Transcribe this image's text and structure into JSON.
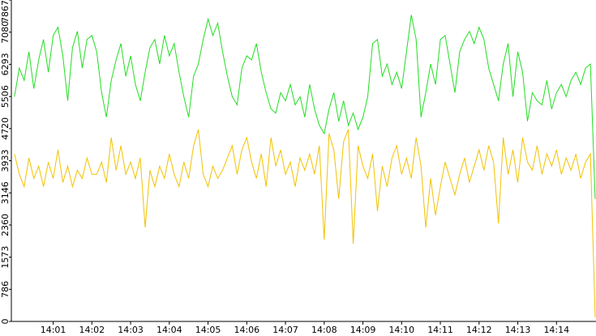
{
  "chart_data": {
    "type": "line",
    "x": [
      0,
      0.125,
      0.25,
      0.375,
      0.5,
      0.625,
      0.75,
      0.875,
      1,
      1.125,
      1.25,
      1.375,
      1.5,
      1.625,
      1.75,
      1.875,
      2,
      2.125,
      2.25,
      2.375,
      2.5,
      2.625,
      2.75,
      2.875,
      3,
      3.125,
      3.25,
      3.375,
      3.5,
      3.625,
      3.75,
      3.875,
      4,
      4.125,
      4.25,
      4.375,
      4.5,
      4.625,
      4.75,
      4.875,
      5,
      5.125,
      5.25,
      5.375,
      5.5,
      5.625,
      5.75,
      5.875,
      6,
      6.125,
      6.25,
      6.375,
      6.5,
      6.625,
      6.75,
      6.875,
      7,
      7.125,
      7.25,
      7.375,
      7.5,
      7.625,
      7.75,
      7.875,
      8,
      8.125,
      8.25,
      8.375,
      8.5,
      8.625,
      8.75,
      8.875,
      9,
      9.125,
      9.25,
      9.375,
      9.5,
      9.625,
      9.75,
      9.875,
      10,
      10.125,
      10.25,
      10.375,
      10.5,
      10.625,
      10.75,
      10.875,
      11,
      11.125,
      11.25,
      11.375,
      11.5,
      11.625,
      11.75,
      11.875,
      12,
      12.125,
      12.25,
      12.375,
      12.5,
      12.625,
      12.75,
      12.875,
      13,
      13.125,
      13.25,
      13.375,
      13.5,
      13.625,
      13.75,
      13.875,
      14,
      14.125,
      14.25,
      14.375,
      14.5,
      14.625,
      14.75,
      14.875,
      15
    ],
    "series": [
      {
        "color": "#22dd22",
        "values": [
          5500,
          6200,
          5900,
          6600,
          5700,
          6400,
          6900,
          6100,
          7000,
          7200,
          6500,
          5400,
          6700,
          7100,
          6200,
          6900,
          7000,
          6600,
          5600,
          5000,
          5900,
          6400,
          6800,
          6000,
          6500,
          5800,
          5400,
          6100,
          6700,
          6900,
          6300,
          7000,
          6500,
          6800,
          6100,
          5500,
          5000,
          6000,
          6300,
          6900,
          7400,
          7000,
          7300,
          6600,
          6000,
          5500,
          5300,
          6200,
          6500,
          6400,
          6800,
          6100,
          5600,
          5200,
          5100,
          5600,
          5400,
          5800,
          5300,
          5500,
          5000,
          5800,
          5200,
          4800,
          4600,
          5200,
          5600,
          4900,
          5400,
          4800,
          5100,
          4700,
          5000,
          5500,
          6800,
          6900,
          6000,
          6300,
          5800,
          6100,
          5700,
          6600,
          7500,
          6900,
          5000,
          5600,
          6300,
          5800,
          6900,
          7000,
          6300,
          5600,
          6600,
          6900,
          7100,
          6800,
          7200,
          6900,
          6200,
          5800,
          5400,
          6300,
          6800,
          5500,
          6600,
          6100,
          4900,
          5600,
          5400,
          5300,
          5900,
          5200,
          5600,
          5800,
          5500,
          5900,
          6100,
          5800,
          6200,
          6300,
          3000
        ]
      },
      {
        "color": "#f2c200",
        "values": [
          4100,
          3600,
          3300,
          4000,
          3500,
          3800,
          3300,
          3900,
          3500,
          4200,
          3400,
          3800,
          3300,
          3700,
          3500,
          4000,
          3600,
          3600,
          3900,
          3400,
          4500,
          3700,
          4300,
          3600,
          3900,
          3500,
          4000,
          2300,
          3700,
          3300,
          3800,
          3500,
          4100,
          3600,
          3300,
          3900,
          3500,
          4300,
          4700,
          3600,
          3300,
          3800,
          3500,
          3700,
          4000,
          4300,
          3600,
          4200,
          4500,
          3900,
          3500,
          4100,
          3300,
          4500,
          3800,
          4200,
          3600,
          3900,
          3300,
          4000,
          3700,
          4100,
          3600,
          4300,
          2000,
          4600,
          4200,
          3000,
          4400,
          4700,
          1900,
          4300,
          3800,
          3500,
          4100,
          2700,
          3800,
          3300,
          4000,
          4300,
          3600,
          4000,
          3500,
          4500,
          3800,
          2300,
          3500,
          2600,
          3300,
          3900,
          3500,
          3100,
          3600,
          4000,
          3400,
          3800,
          4200,
          3700,
          4300,
          3900,
          2400,
          4500,
          3600,
          4200,
          3400,
          4500,
          3900,
          3700,
          4300,
          3600,
          4100,
          3800,
          4200,
          3600,
          4000,
          3700,
          4100,
          3500,
          3900,
          4100,
          100
        ]
      }
    ],
    "xlim": [
      -0.08,
      15.02
    ],
    "xticks": [
      {
        "value": 1,
        "label": "14:01"
      },
      {
        "value": 2,
        "label": "14:02"
      },
      {
        "value": 3,
        "label": "14:03"
      },
      {
        "value": 4,
        "label": "14:04"
      },
      {
        "value": 5,
        "label": "14:05"
      },
      {
        "value": 6,
        "label": "14:06"
      },
      {
        "value": 7,
        "label": "14:07"
      },
      {
        "value": 8,
        "label": "14:08"
      },
      {
        "value": 9,
        "label": "14:09"
      },
      {
        "value": 10,
        "label": "14:10"
      },
      {
        "value": 11,
        "label": "14:11"
      },
      {
        "value": 12,
        "label": "14:12"
      },
      {
        "value": 13,
        "label": "14:13"
      },
      {
        "value": 14,
        "label": "14:14"
      }
    ],
    "ylim": [
      0,
      7867
    ],
    "yticks": [
      0,
      786,
      1573,
      2360,
      3146,
      3933,
      4720,
      5506,
      6293,
      7080,
      7867
    ]
  }
}
